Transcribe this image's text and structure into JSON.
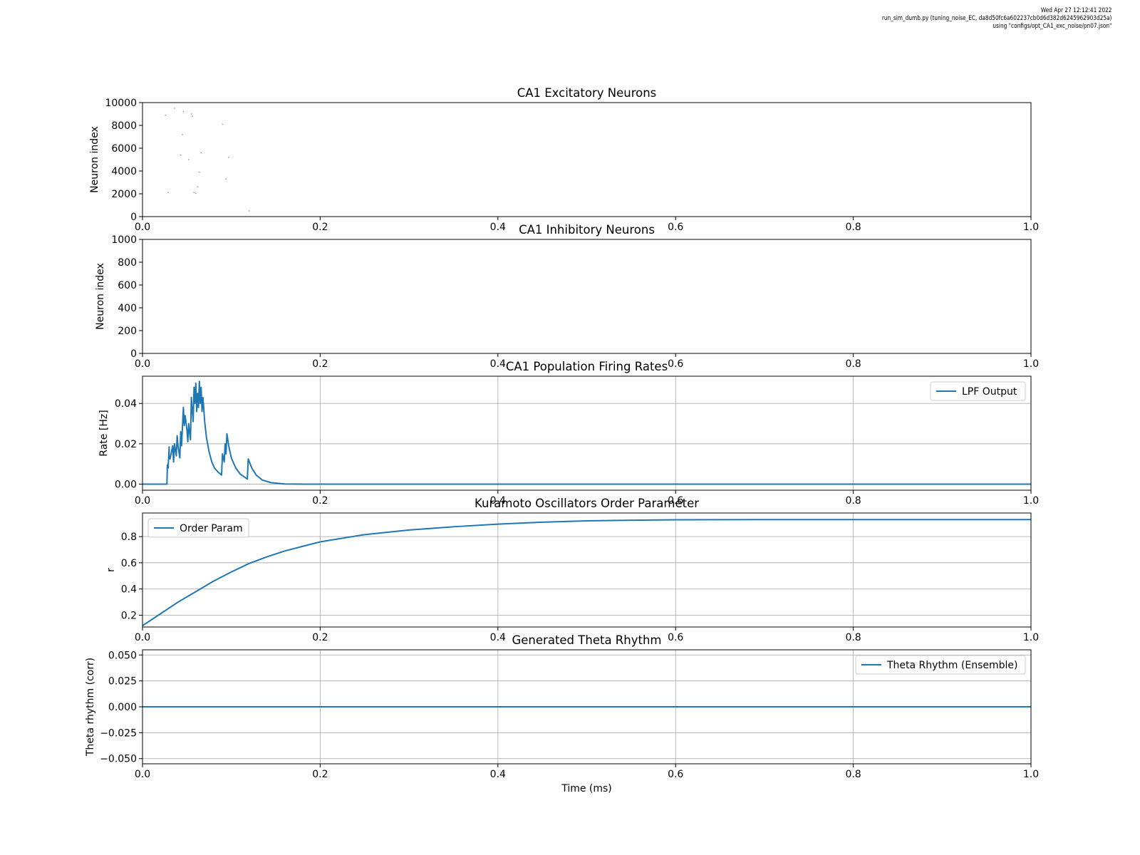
{
  "header": {
    "line1": "Wed Apr 27 12:12:41 2022",
    "line2": "run_sim_dumb.py (tuning_noise_EC, da8d50fc6a602237cb0d6d382d6245962903d25a)",
    "line3": "using \"configs/opt_CA1_exc_noise/pn07.json\""
  },
  "colors": {
    "series": "#1f77b4",
    "grid": "#b0b0b0",
    "axis": "#000000"
  },
  "chart_data": [
    {
      "type": "scatter",
      "title": "CA1 Excitatory Neurons",
      "ylabel": "Neuron index",
      "xlabel": "",
      "xlim": [
        0,
        1
      ],
      "ylim": [
        0,
        10000
      ],
      "xticks": [
        "0.0",
        "0.2",
        "0.4",
        "0.6",
        "0.8",
        "1.0"
      ],
      "yticks": [
        "0",
        "2000",
        "4000",
        "6000",
        "8000",
        "10000"
      ],
      "ytick_values": [
        0,
        2000,
        4000,
        6000,
        8000,
        10000
      ],
      "grid": false,
      "legend": null,
      "marker_color": "#9a9a9a",
      "points": [
        [
          0.026,
          8900
        ],
        [
          0.029,
          2100
        ],
        [
          0.036,
          9500
        ],
        [
          0.043,
          5400
        ],
        [
          0.045,
          7200
        ],
        [
          0.046,
          9200
        ],
        [
          0.052,
          5000
        ],
        [
          0.055,
          9000
        ],
        [
          0.056,
          8800
        ],
        [
          0.058,
          2100
        ],
        [
          0.06,
          2050
        ],
        [
          0.062,
          2600
        ],
        [
          0.064,
          3900
        ],
        [
          0.066,
          5600
        ],
        [
          0.09,
          8100
        ],
        [
          0.094,
          3300
        ],
        [
          0.097,
          5200
        ],
        [
          0.12,
          500
        ]
      ]
    },
    {
      "type": "scatter",
      "title": "CA1 Inhibitory Neurons",
      "ylabel": "Neuron index",
      "xlabel": "",
      "xlim": [
        0,
        1
      ],
      "ylim": [
        0,
        1000
      ],
      "xticks": [
        "0.0",
        "0.2",
        "0.4",
        "0.6",
        "0.8",
        "1.0"
      ],
      "yticks": [
        "0",
        "200",
        "400",
        "600",
        "800",
        "1000"
      ],
      "ytick_values": [
        0,
        200,
        400,
        600,
        800,
        1000
      ],
      "grid": false,
      "legend": null,
      "points": []
    },
    {
      "type": "line",
      "title": "CA1 Population Firing Rates",
      "ylabel": "Rate [Hz]",
      "xlabel": "",
      "xlim": [
        0,
        1
      ],
      "ylim": [
        -0.003,
        0.0535
      ],
      "xticks": [
        "0.0",
        "0.2",
        "0.4",
        "0.6",
        "0.8",
        "1.0"
      ],
      "yticks": [
        "0.00",
        "0.02",
        "0.04"
      ],
      "ytick_values": [
        0,
        0.02,
        0.04
      ],
      "grid": true,
      "legend": "top-right",
      "series": [
        {
          "name": "LPF Output",
          "x": [
            0,
            0.027,
            0.0275,
            0.028,
            0.029,
            0.029,
            0.03,
            0.03,
            0.031,
            0.034,
            0.035,
            0.036,
            0.038,
            0.039,
            0.04,
            0.042,
            0.043,
            0.044,
            0.046,
            0.047,
            0.048,
            0.05,
            0.051,
            0.052,
            0.054,
            0.055,
            0.057,
            0.058,
            0.059,
            0.06,
            0.061,
            0.062,
            0.063,
            0.064,
            0.065,
            0.066,
            0.067,
            0.068,
            0.07,
            0.072,
            0.075,
            0.078,
            0.081,
            0.085,
            0.089,
            0.09,
            0.092,
            0.093,
            0.094,
            0.095,
            0.097,
            0.1,
            0.105,
            0.11,
            0.118,
            0.119,
            0.123,
            0.128,
            0.135,
            0.145,
            0.16,
            0.18,
            0.2,
            1.0
          ],
          "y": [
            0,
            0,
            0,
            0.0095,
            0.008,
            0.0095,
            0.0185,
            0.014,
            0.0125,
            0.019,
            0.011,
            0.02,
            0.014,
            0.024,
            0.019,
            0.013,
            0.026,
            0.019,
            0.038,
            0.029,
            0.034,
            0.027,
            0.021,
            0.03,
            0.022,
            0.043,
            0.031,
            0.048,
            0.04,
            0.05,
            0.036,
            0.045,
            0.038,
            0.051,
            0.04,
            0.048,
            0.036,
            0.043,
            0.031,
            0.023,
            0.016,
            0.011,
            0.008,
            0.006,
            0.0045,
            0.015,
            0.011,
            0.02,
            0.015,
            0.025,
            0.019,
            0.013,
            0.008,
            0.005,
            0.0025,
            0.0125,
            0.008,
            0.0045,
            0.002,
            0.0007,
            0.0001,
            0,
            0,
            0
          ]
        }
      ]
    },
    {
      "type": "line",
      "title": "Kuramoto Oscillators Order Parameter",
      "ylabel": "r",
      "xlabel": "",
      "xlim": [
        0,
        1
      ],
      "ylim": [
        0.11,
        0.98
      ],
      "xticks": [
        "0.0",
        "0.2",
        "0.4",
        "0.6",
        "0.8",
        "1.0"
      ],
      "yticks": [
        "0.2",
        "0.4",
        "0.6",
        "0.8"
      ],
      "ytick_values": [
        0.2,
        0.4,
        0.6,
        0.8
      ],
      "grid": true,
      "legend": "top-left",
      "series": [
        {
          "name": "Order Param",
          "x": [
            0,
            0.02,
            0.04,
            0.06,
            0.08,
            0.1,
            0.12,
            0.14,
            0.16,
            0.18,
            0.2,
            0.25,
            0.3,
            0.35,
            0.4,
            0.45,
            0.5,
            0.55,
            0.6,
            0.7,
            0.8,
            0.9,
            1.0
          ],
          "y": [
            0.12,
            0.21,
            0.3,
            0.38,
            0.46,
            0.53,
            0.595,
            0.645,
            0.69,
            0.725,
            0.76,
            0.815,
            0.85,
            0.875,
            0.895,
            0.91,
            0.92,
            0.925,
            0.928,
            0.93,
            0.93,
            0.93,
            0.93
          ]
        }
      ]
    },
    {
      "type": "line",
      "title": "Generated Theta Rhythm",
      "ylabel": "Theta rhythm (corr)",
      "xlabel": "Time (ms)",
      "xlim": [
        0,
        1
      ],
      "ylim": [
        -0.055,
        0.055
      ],
      "xticks": [
        "0.0",
        "0.2",
        "0.4",
        "0.6",
        "0.8",
        "1.0"
      ],
      "yticks": [
        "−0.050",
        "−0.025",
        "0.000",
        "0.025",
        "0.050"
      ],
      "ytick_values": [
        -0.05,
        -0.025,
        0,
        0.025,
        0.05
      ],
      "grid": true,
      "legend": "top-right",
      "series": [
        {
          "name": "Theta Rhythm (Ensemble)",
          "x": [
            0,
            1.0
          ],
          "y": [
            0,
            0
          ]
        }
      ]
    }
  ]
}
